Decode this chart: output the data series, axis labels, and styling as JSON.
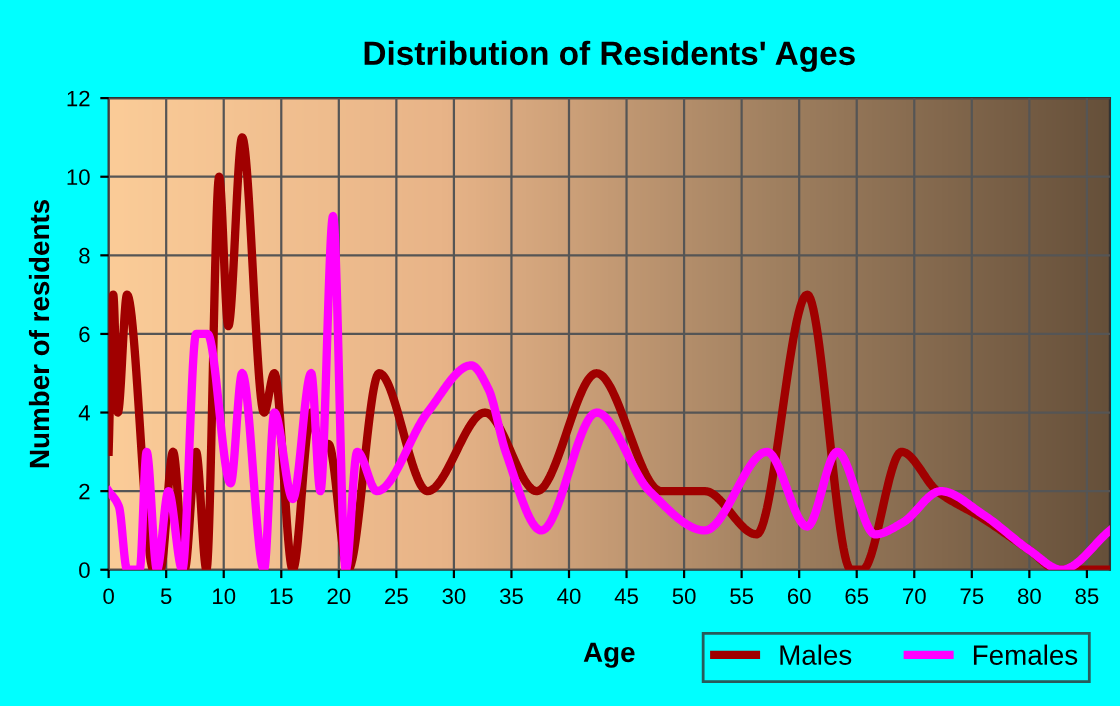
{
  "chart_data": {
    "type": "line",
    "title": "Distribution of Residents' Ages",
    "xlabel": "Age",
    "ylabel": "Number of residents",
    "xlim": [
      0,
      87
    ],
    "xticks": [
      0,
      5,
      10,
      15,
      20,
      25,
      30,
      35,
      40,
      45,
      50,
      55,
      60,
      65,
      70,
      75,
      80,
      85
    ],
    "ylim": [
      0,
      12
    ],
    "yticks": [
      0,
      2,
      4,
      6,
      8,
      10,
      12
    ],
    "grid": true,
    "legend": "bottom right",
    "line_style": "solid",
    "series": [
      {
        "name": "Males",
        "color": "#a00000",
        "x": [
          0,
          0.4,
          0.8,
          1.6,
          3.9,
          4.5,
          5.6,
          6.6,
          7.6,
          8.5,
          9.6,
          10.4,
          11.6,
          13.5,
          14.4,
          16,
          17.6,
          18.4,
          19.1,
          20.8,
          23.5,
          27.7,
          32.7,
          37.2,
          42.4,
          48,
          51.8,
          56.3,
          60.7,
          64.5,
          65.5,
          68.9,
          72,
          76,
          80,
          82.5,
          87
        ],
        "values": [
          3,
          7,
          4,
          7,
          0,
          0,
          3,
          0,
          3,
          0,
          10,
          6.2,
          11,
          4,
          5,
          0,
          4,
          3,
          3.2,
          0,
          5,
          2,
          4,
          2,
          5,
          2,
          2,
          0.9,
          7,
          0,
          0,
          3,
          2,
          1.3,
          0.5,
          0,
          0
        ]
      },
      {
        "name": "Females",
        "color": "#ff00ff",
        "x": [
          0,
          0.9,
          1.6,
          2.7,
          3.3,
          4.2,
          5.2,
          6.4,
          7.6,
          8.6,
          10.6,
          11.6,
          13.5,
          14.4,
          16,
          17.6,
          18.4,
          19.5,
          20.6,
          21.6,
          23.3,
          27.7,
          31.5,
          33,
          34.5,
          37.6,
          42.4,
          47,
          51.8,
          57.2,
          60.7,
          63.3,
          66.6,
          69,
          72.3,
          76,
          80,
          82.8,
          87
        ],
        "values": [
          2,
          1.6,
          0,
          0,
          3,
          0,
          2,
          0,
          6,
          6,
          2.2,
          5,
          0,
          4,
          1.8,
          5,
          2,
          9,
          0,
          3,
          2,
          4,
          5.2,
          4.6,
          3,
          1,
          4,
          2,
          1,
          3,
          1.1,
          3,
          0.9,
          1.2,
          2,
          1.4,
          0.5,
          0,
          1
        ]
      }
    ]
  }
}
